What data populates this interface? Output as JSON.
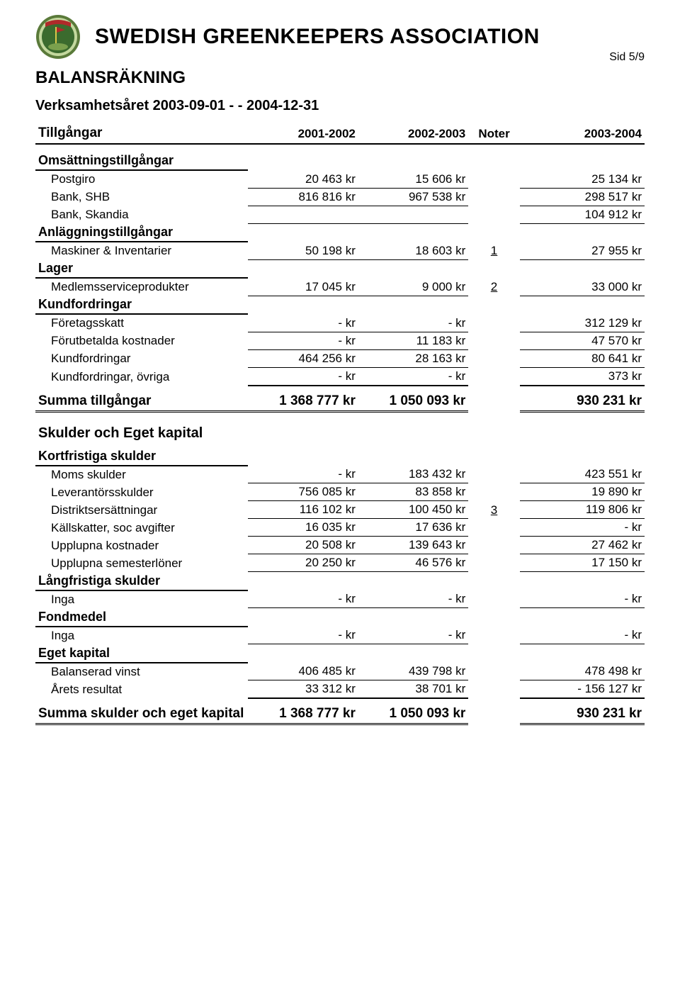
{
  "header": {
    "org": "SWEDISH GREENKEEPERS ASSOCIATION",
    "page_label": "Sid 5/9",
    "doc_title": "BALANSRÄKNING",
    "period": "Verksamhetsåret 2003-09-01 - - 2004-12-31"
  },
  "colors": {
    "logo_outer": "#5a7a3a",
    "logo_mid": "#c3d89e",
    "logo_inner": "#3b6b2e",
    "logo_ribbon": "#b02a2a",
    "logo_flag": "#d9c94a",
    "text": "#000000",
    "background": "#ffffff"
  },
  "columns": {
    "label": "Tillgångar",
    "c1": "2001-2002",
    "c2": "2002-2003",
    "note": "Noter",
    "c3": "2003-2004"
  },
  "assets": {
    "omsattning": {
      "title": "Omsättningstillgångar",
      "rows": [
        {
          "label": "Postgiro",
          "v1": "20 463 kr",
          "v2": "15 606 kr",
          "note": "",
          "v3": "25 134 kr"
        },
        {
          "label": "Bank, SHB",
          "v1": "816 816 kr",
          "v2": "967 538 kr",
          "note": "",
          "v3": "298 517 kr"
        },
        {
          "label": "Bank, Skandia",
          "v1": "",
          "v2": "",
          "note": "",
          "v3": "104 912 kr"
        }
      ]
    },
    "anlaggning": {
      "title": "Anläggningstillgångar",
      "rows": [
        {
          "label": "Maskiner & Inventarier",
          "v1": "50 198 kr",
          "v2": "18 603 kr",
          "note": "1",
          "v3": "27 955 kr"
        }
      ]
    },
    "lager": {
      "title": "Lager",
      "rows": [
        {
          "label": "Medlemsserviceprodukter",
          "v1": "17 045 kr",
          "v2": "9 000 kr",
          "note": "2",
          "v3": "33 000 kr"
        }
      ]
    },
    "kundfordringar": {
      "title": "Kundfordringar",
      "rows": [
        {
          "label": "Företagsskatt",
          "v1": "-   kr",
          "v2": "-   kr",
          "note": "",
          "v3": "312 129 kr"
        },
        {
          "label": "Förutbetalda kostnader",
          "v1": "-   kr",
          "v2": "11 183 kr",
          "note": "",
          "v3": "47 570 kr"
        },
        {
          "label": "Kundfordringar",
          "v1": "464 256 kr",
          "v2": "28 163 kr",
          "note": "",
          "v3": "80 641 kr"
        },
        {
          "label": "Kundfordringar, övriga",
          "v1": "-   kr",
          "v2": "-   kr",
          "note": "",
          "v3": "373 kr"
        }
      ]
    }
  },
  "sum_assets": {
    "label": "Summa tillgångar",
    "v1": "1 368 777 kr",
    "v2": "1 050 093 kr",
    "v3": "930 231 kr"
  },
  "liab_heading": "Skulder och Eget kapital",
  "liabilities": {
    "kortfristiga": {
      "title": "Kortfristiga skulder",
      "rows": [
        {
          "label": "Moms skulder",
          "v1": "-   kr",
          "v2": "183 432 kr",
          "note": "",
          "v3": "423 551 kr"
        },
        {
          "label": "Leverantörsskulder",
          "v1": "756 085 kr",
          "v2": "83 858 kr",
          "note": "",
          "v3": "19 890 kr"
        },
        {
          "label": "Distriktsersättningar",
          "v1": "116 102 kr",
          "v2": "100 450 kr",
          "note": "3",
          "v3": "119 806 kr"
        },
        {
          "label": "Källskatter, soc avgifter",
          "v1": "16 035 kr",
          "v2": "17 636 kr",
          "note": "",
          "v3": "-   kr"
        },
        {
          "label": "Upplupna kostnader",
          "v1": "20 508 kr",
          "v2": "139 643 kr",
          "note": "",
          "v3": "27 462 kr"
        },
        {
          "label": "Upplupna semesterlöner",
          "v1": "20 250 kr",
          "v2": "46 576 kr",
          "note": "",
          "v3": "17 150 kr"
        }
      ]
    },
    "langfristiga": {
      "title": "Långfristiga skulder",
      "rows": [
        {
          "label": "Inga",
          "v1": "-   kr",
          "v2": "-   kr",
          "note": "",
          "v3": "-   kr"
        }
      ]
    },
    "fondmedel": {
      "title": "Fondmedel",
      "rows": [
        {
          "label": "Inga",
          "v1": "-   kr",
          "v2": "-   kr",
          "note": "",
          "v3": "-   kr"
        }
      ]
    },
    "eget_kapital": {
      "title": "Eget kapital",
      "rows": [
        {
          "label": "Balanserad vinst",
          "v1": "406 485 kr",
          "v2": "439 798 kr",
          "note": "",
          "v3": "478 498 kr"
        },
        {
          "label": "Årets resultat",
          "v1": "33 312 kr",
          "v2": "38 701 kr",
          "note": "",
          "v3": "-   156 127 kr"
        }
      ]
    }
  },
  "sum_liab": {
    "label": "Summa skulder och eget kapital",
    "v1": "1 368 777 kr",
    "v2": "1 050 093 kr",
    "v3": "930 231 kr"
  }
}
